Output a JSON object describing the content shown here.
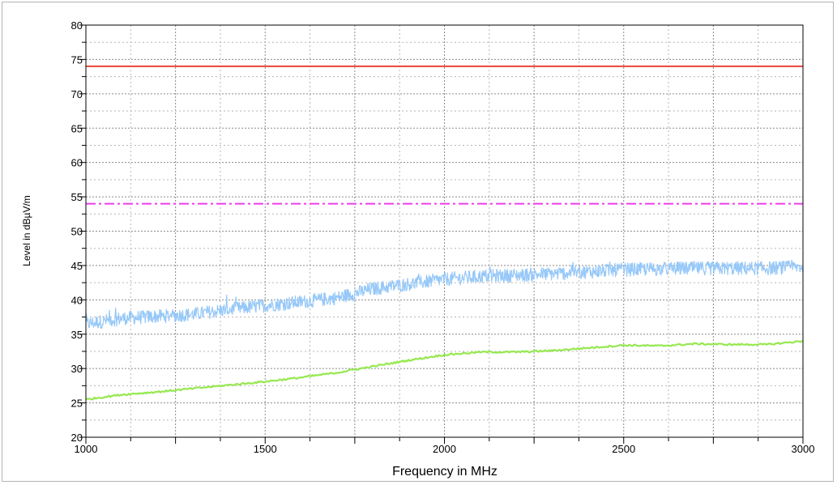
{
  "chart_data": {
    "type": "line",
    "title": "",
    "xlabel": "Frequency in MHz",
    "ylabel": "Level in dBµV/m",
    "xlim": [
      1000,
      3000
    ],
    "ylim": [
      20,
      80
    ],
    "x_ticks": [
      1000,
      1500,
      2000,
      2500,
      3000
    ],
    "y_ticks": [
      20,
      25,
      30,
      35,
      40,
      45,
      50,
      55,
      60,
      65,
      70,
      75,
      80
    ],
    "grid": true,
    "legend": "none",
    "reference_lines": [
      {
        "value": 74,
        "color": "#e8443a",
        "style": "solid"
      },
      {
        "value": 54,
        "color": "#ee3cee",
        "style": "dash-dot"
      }
    ],
    "series": [
      {
        "color": "#96c8f8",
        "style": "noisy",
        "x": [
          1000,
          1100,
          1200,
          1300,
          1400,
          1500,
          1600,
          1700,
          1800,
          1900,
          2000,
          2100,
          2200,
          2300,
          2400,
          2500,
          2600,
          2700,
          2800,
          2900,
          3000
        ],
        "y": [
          36.5,
          37.3,
          37.6,
          37.9,
          38.6,
          39.2,
          39.7,
          40.3,
          41.6,
          42.3,
          43.0,
          43.4,
          43.6,
          43.8,
          44.1,
          44.4,
          44.5,
          44.6,
          44.6,
          44.6,
          44.8
        ]
      },
      {
        "color": "#96e850",
        "style": "smooth",
        "x": [
          1000,
          1100,
          1200,
          1300,
          1400,
          1500,
          1600,
          1700,
          1800,
          1900,
          2000,
          2100,
          2200,
          2300,
          2400,
          2500,
          2600,
          2700,
          2800,
          2900,
          3000
        ],
        "y": [
          25.5,
          26.2,
          26.6,
          27.1,
          27.6,
          28.1,
          28.7,
          29.4,
          30.3,
          31.2,
          32.0,
          32.4,
          32.4,
          32.6,
          33.0,
          33.4,
          33.3,
          33.6,
          33.5,
          33.5,
          34.0
        ]
      }
    ]
  }
}
